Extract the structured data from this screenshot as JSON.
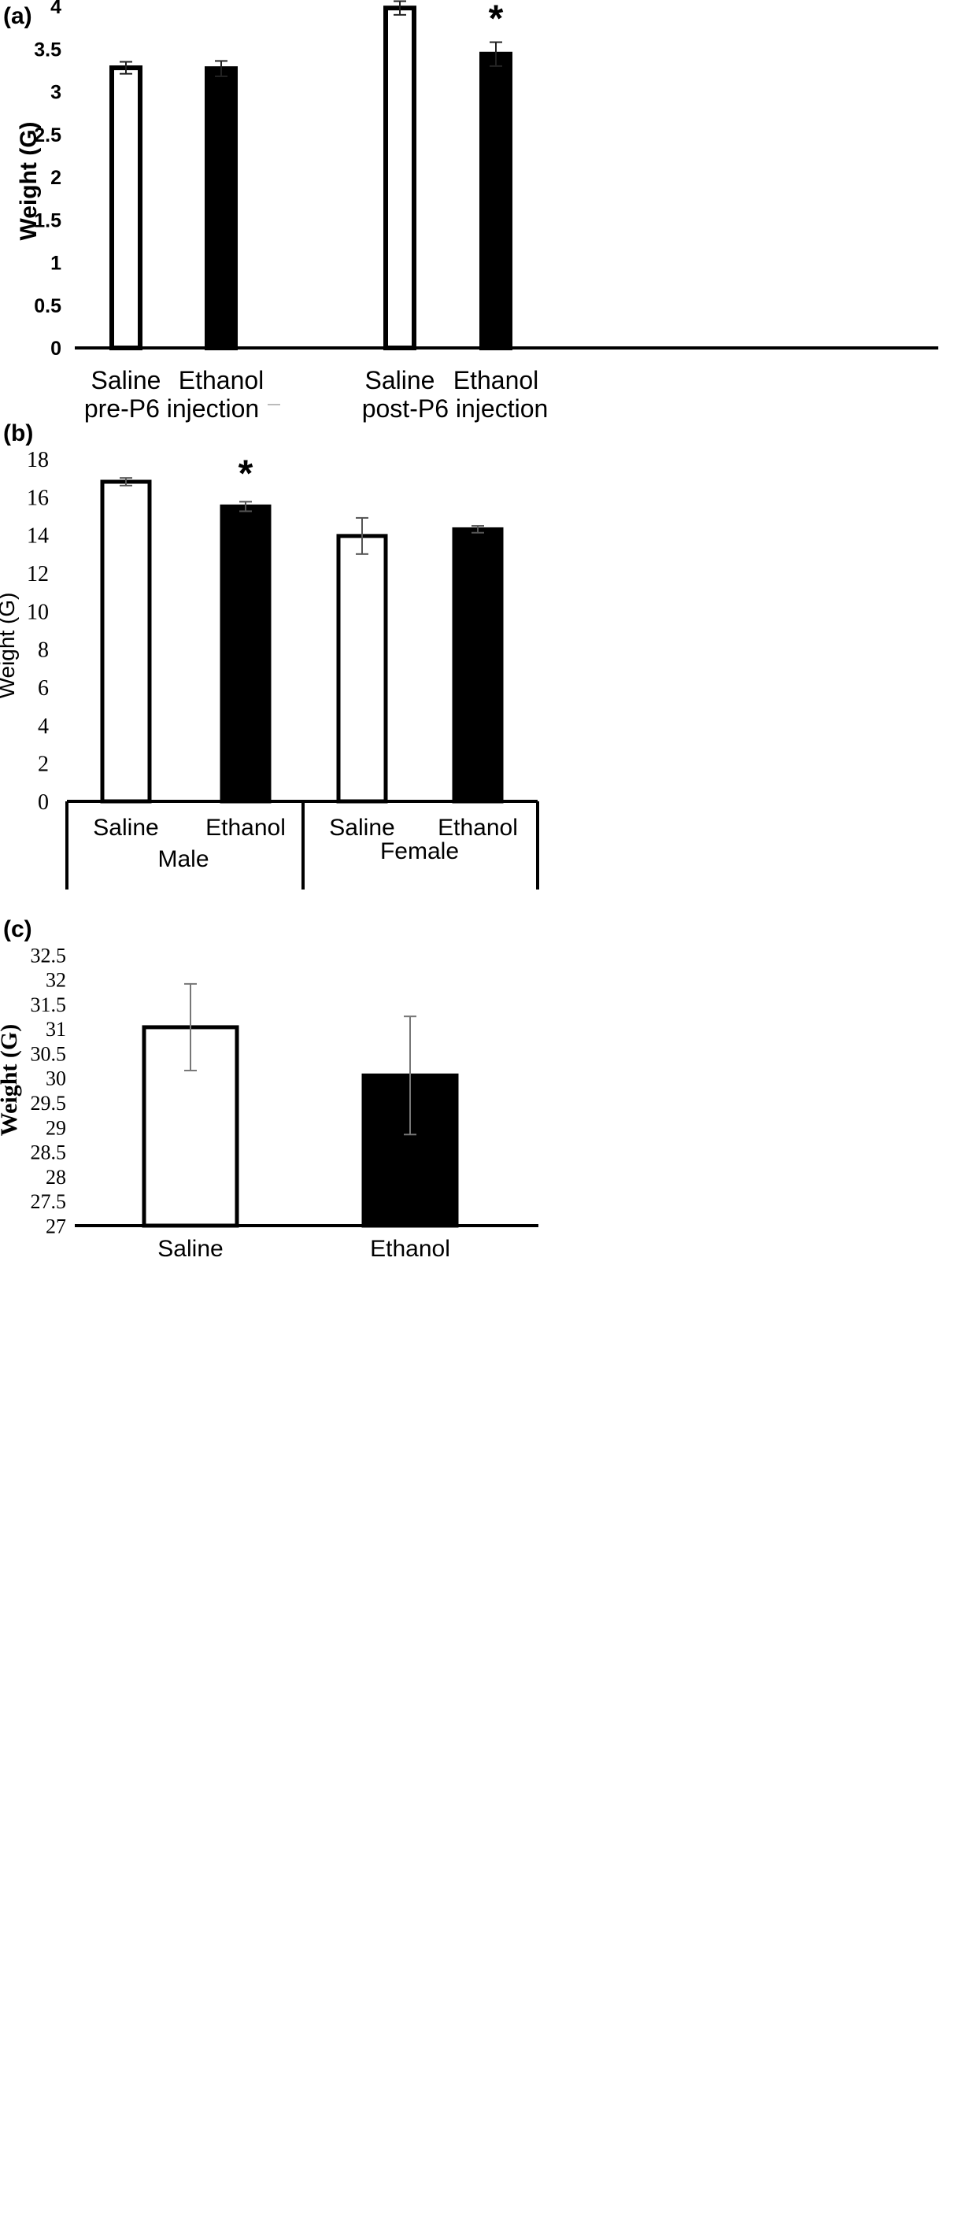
{
  "colors": {
    "saline_fill": "#ffffff",
    "ethanol_fill": "#000000",
    "outline": "#000000",
    "axis": "#000000",
    "error_bar_a": "#222222",
    "error_bar_b": "#555555",
    "error_bar_c": "#777777"
  },
  "chart_data": [
    {
      "panel_label": "(a)",
      "type": "bar",
      "ylabel": "Weight (G)",
      "ylim": [
        0,
        4
      ],
      "yticks": [
        "0",
        "0.5",
        "1",
        "1.5",
        "2",
        "2.5",
        "3",
        "3.5",
        "4"
      ],
      "categories": [
        "Saline",
        "Ethanol",
        "Saline",
        "Ethanol"
      ],
      "groups": [
        "pre-P6 injection",
        "post-P6 injection"
      ],
      "fills": [
        "saline",
        "ethanol",
        "saline",
        "ethanol"
      ],
      "values": [
        3.28,
        3.27,
        3.98,
        3.44
      ],
      "errors": [
        0.07,
        0.09,
        0.08,
        0.14
      ],
      "significance": [
        "",
        "",
        "",
        "*"
      ],
      "grid": false
    },
    {
      "panel_label": "(b)",
      "type": "bar",
      "ylabel": "Weight (G)",
      "ylim": [
        0,
        18
      ],
      "yticks": [
        "0",
        "2",
        "4",
        "6",
        "8",
        "10",
        "12",
        "14",
        "16",
        "18"
      ],
      "categories": [
        "Saline",
        "Ethanol",
        "Saline",
        "Ethanol"
      ],
      "groups": [
        "Male",
        "Female"
      ],
      "fills": [
        "saline",
        "ethanol",
        "saline",
        "ethanol"
      ],
      "values": [
        16.8,
        15.5,
        13.95,
        14.3
      ],
      "errors": [
        0.2,
        0.25,
        0.95,
        0.18
      ],
      "significance": [
        "",
        "*",
        "",
        ""
      ],
      "grid": false
    },
    {
      "panel_label": "(c)",
      "type": "bar",
      "ylabel": "Weight (G)",
      "ylim": [
        27,
        32.5
      ],
      "yticks": [
        "27",
        "27.5",
        "28",
        "28.5",
        "29",
        "29.5",
        "30",
        "30.5",
        "31",
        "31.5",
        "32",
        "32.5"
      ],
      "categories": [
        "Saline",
        "Ethanol"
      ],
      "fills": [
        "saline",
        "ethanol"
      ],
      "values": [
        31.03,
        30.05
      ],
      "errors": [
        0.88,
        1.2
      ],
      "grid": false
    }
  ]
}
